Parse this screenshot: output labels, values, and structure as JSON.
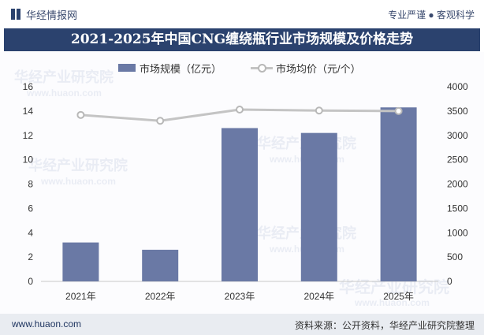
{
  "header": {
    "brand": "华经情报网",
    "slogan": "专业严谨 ● 客观科学"
  },
  "title": "2021-2025年中国CNG缠绕瓶行业市场规模及价格走势",
  "chart_data": {
    "type": "bar",
    "categories": [
      "2021年",
      "2022年",
      "2023年",
      "2024年",
      "2025年"
    ],
    "series": [
      {
        "name": "市场规模（亿元）",
        "type": "bar",
        "axis": "left",
        "color": "#6a79a5",
        "values": [
          3.2,
          2.6,
          12.6,
          12.2,
          14.3
        ]
      },
      {
        "name": "市场均价（元/个）",
        "type": "line",
        "axis": "right",
        "color": "#c4c4c4",
        "values": [
          3420,
          3300,
          3530,
          3510,
          3500
        ]
      }
    ],
    "y_left": {
      "range": [
        0,
        16
      ],
      "ticks": [
        0,
        2,
        4,
        6,
        8,
        10,
        12,
        14,
        16
      ]
    },
    "y_right": {
      "range": [
        0,
        4000
      ],
      "ticks": [
        0,
        500,
        1000,
        1500,
        2000,
        2500,
        3000,
        3500,
        4000
      ]
    },
    "grid": false,
    "legend_position": "top"
  },
  "watermark": {
    "name": "华经产业研究院",
    "site": "www.huaon.com"
  },
  "footer": {
    "site": "www.huaon.com",
    "source": "资料来源：公开资料，华经产业研究院整理"
  }
}
